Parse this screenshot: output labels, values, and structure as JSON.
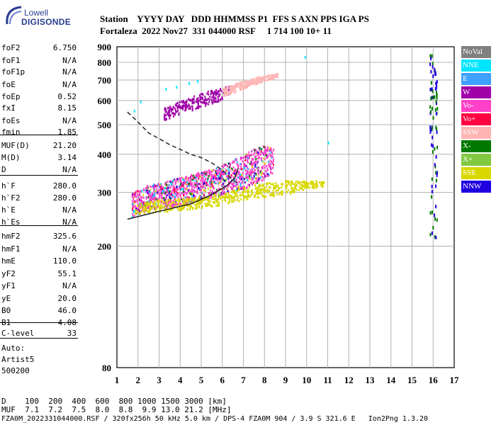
{
  "logo": {
    "line1": "Lowell",
    "line2": "DIGISONDE"
  },
  "header": {
    "labels": "Station    YYYY DAY   DDD HHMMSS P1  FFS S AXN PPS IGA PS",
    "values": "Fortaleza  2022 Nov27  331 044000 RSF     1 714 100 10+ 11"
  },
  "params": [
    {
      "name": "foF2",
      "value": "6.750"
    },
    {
      "name": "foF1",
      "value": "N/A"
    },
    {
      "name": "foF1p",
      "value": "N/A"
    },
    {
      "name": "foE",
      "value": "N/A"
    },
    {
      "name": "foEp",
      "value": "0.52"
    },
    {
      "name": "fxI",
      "value": "8.15"
    },
    {
      "name": "foEs",
      "value": "N/A"
    },
    {
      "name": "fmin",
      "value": "1.85"
    },
    {
      "name": "MUF(D)",
      "value": "21.20"
    },
    {
      "name": "M(D)",
      "value": "3.14"
    },
    {
      "name": "D",
      "value": "N/A"
    },
    {
      "name": "h`F",
      "value": "280.0"
    },
    {
      "name": "h`F2",
      "value": "280.0"
    },
    {
      "name": "h`E",
      "value": "N/A"
    },
    {
      "name": "h`Es",
      "value": "N/A"
    },
    {
      "name": "hmF2",
      "value": "325.6"
    },
    {
      "name": "hmF1",
      "value": "N/A"
    },
    {
      "name": "hmE",
      "value": "110.0"
    },
    {
      "name": "yF2",
      "value": "55.1"
    },
    {
      "name": "yF1",
      "value": "N/A"
    },
    {
      "name": "yE",
      "value": "20.0"
    },
    {
      "name": "B0",
      "value": "46.0"
    },
    {
      "name": "B1",
      "value": "4.08"
    },
    {
      "name": "C-level",
      "value": "33"
    }
  ],
  "autoscale": {
    "line1": "Auto:",
    "line2": "Artist5",
    "line3": "500200"
  },
  "footer": {
    "d_line": "D    100  200  400  600  800 1000 1500 3000 [km]",
    "muf_line": "MUF  7.1  7.2  7.5  8.0  8.8  9.9 13.0 21.2 [MHz]",
    "file_line": "FZA0M_2022331044000.RSF / 320fx256h 50 kHz 5.0 km / DPS-4 FZA0M 904 / 3.9 S 321.6 E   Ion2Png 1.3.20"
  },
  "legend": [
    {
      "label": "NoVal",
      "color": "#808080"
    },
    {
      "label": "NNE",
      "color": "#00e5ff"
    },
    {
      "label": "E",
      "color": "#3ea0ff"
    },
    {
      "label": "W",
      "color": "#a000a8"
    },
    {
      "label": "Vo-",
      "color": "#ff40c8"
    },
    {
      "label": "Vo+",
      "color": "#ff0040"
    },
    {
      "label": "SSW",
      "color": "#ffb4b4"
    },
    {
      "label": "X-",
      "color": "#007800"
    },
    {
      "label": "X+",
      "color": "#80c840"
    },
    {
      "label": "SSE",
      "color": "#d8d800"
    },
    {
      "label": "NNW",
      "color": "#2000e0"
    }
  ],
  "chart_data": {
    "type": "scatter",
    "title": "",
    "xlabel": "",
    "ylabel": "",
    "xlim": [
      1,
      17
    ],
    "ylim": [
      80,
      900
    ],
    "y_scale": "log",
    "grid": true,
    "x_ticks": [
      "1",
      "2",
      "3",
      "4",
      "5",
      "6",
      "7",
      "8",
      "9",
      "10",
      "11",
      "12",
      "13",
      "14",
      "15",
      "16",
      "17"
    ],
    "y_ticks": [
      "80",
      "200",
      "300",
      "400",
      "500",
      "600",
      "700",
      "800",
      "900"
    ],
    "legend_position": "right",
    "series": [
      {
        "name": "Vo-",
        "kind": "O-trace (band)",
        "x": [
          1.7,
          2.5,
          3.5,
          4.5,
          5.5,
          6.3,
          7.0,
          7.5,
          8.0,
          8.4
        ],
        "y_low": [
          250,
          265,
          270,
          280,
          290,
          300,
          310,
          320,
          335,
          350
        ],
        "y_high": [
          300,
          320,
          330,
          345,
          360,
          380,
          400,
          420,
          430,
          420
        ]
      },
      {
        "name": "SSE",
        "kind": "trace (band)",
        "x": [
          1.8,
          3.0,
          4.5,
          6.0,
          7.5,
          9.0,
          10.0,
          10.8
        ],
        "y_low": [
          255,
          260,
          265,
          275,
          290,
          295,
          310,
          315
        ],
        "y_high": [
          275,
          285,
          290,
          300,
          320,
          330,
          330,
          330
        ]
      },
      {
        "name": "W",
        "kind": "second-hop trace (band)",
        "x": [
          3.2,
          4.0,
          5.0,
          5.8,
          6.3
        ],
        "y_low": [
          520,
          545,
          575,
          600,
          625
        ],
        "y_high": [
          570,
          600,
          640,
          660,
          680
        ]
      },
      {
        "name": "SSW",
        "kind": "high-frequency spread (band)",
        "x": [
          6.0,
          7.0,
          8.0,
          8.6
        ],
        "y_low": [
          620,
          660,
          700,
          720
        ],
        "y_high": [
          660,
          700,
          730,
          740
        ]
      },
      {
        "name": "NNE",
        "kind": "isolated echoes",
        "x": [
          2.1,
          3.3,
          3.8,
          4.4,
          4.8,
          1.8,
          9.9,
          11.0
        ],
        "y": [
          600,
          660,
          670,
          690,
          700,
          560,
          840,
          440
        ]
      },
      {
        "name": "X-",
        "kind": "vertical interference column",
        "x": [
          15.9,
          16.1
        ],
        "y_low": [
          200,
          200
        ],
        "y_high": [
          860,
          800
        ]
      }
    ],
    "profile_curves": [
      {
        "name": "true-height profile",
        "x": [
          1.5,
          2.5,
          3.5,
          4.5,
          5.5,
          6.2,
          6.6,
          6.75
        ],
        "y": [
          245,
          255,
          265,
          275,
          295,
          315,
          335,
          360
        ],
        "style": "solid"
      },
      {
        "name": "virtual-height model",
        "x": [
          1.5,
          2.0,
          2.5,
          3.0,
          3.5,
          4.0,
          4.5,
          5.0,
          5.5,
          6.0,
          6.5,
          6.75
        ],
        "y": [
          550,
          510,
          470,
          450,
          430,
          415,
          400,
          390,
          375,
          355,
          330,
          320
        ],
        "style": "dashed"
      }
    ]
  }
}
